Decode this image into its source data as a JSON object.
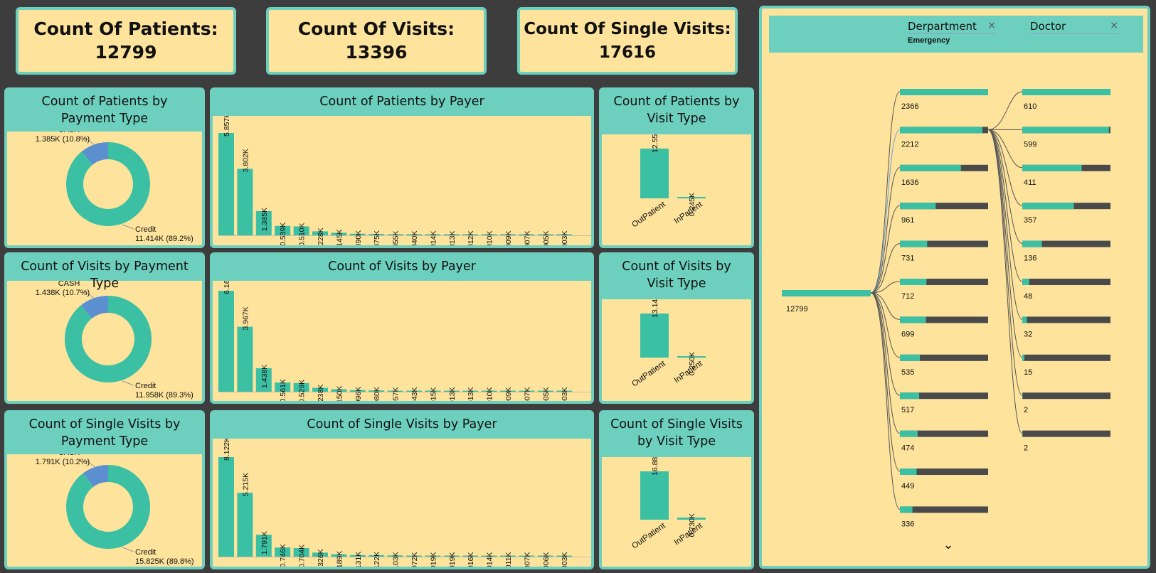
{
  "kpis": {
    "patients": {
      "title": "Count Of Patients:",
      "value": "12799"
    },
    "visits": {
      "title": "Count Of Visits:",
      "value": "13396"
    },
    "single": {
      "title": "Count Of Single Visits:",
      "value": "17616"
    }
  },
  "colors": {
    "teal": "#3cc0a4",
    "blue": "#5b8fcf",
    "panel": "#fde39c",
    "accent": "#6dd0bf",
    "dark": "#4a4a4a"
  },
  "chart_data": [
    {
      "type": "pie",
      "id": "donut1",
      "title": "Count of Patients by Payment Type",
      "slices": [
        {
          "label": "CASH",
          "value": 1385,
          "text": "1.385K (10.8%)"
        },
        {
          "label": "Credit",
          "value": 11414,
          "text": "11.414K (89.2%)"
        }
      ]
    },
    {
      "type": "bar",
      "id": "payer1",
      "title": "Count of Patients by Payer",
      "values": [
        5857,
        3802,
        1385,
        539,
        510,
        228,
        145,
        90,
        75,
        55,
        40,
        14,
        13,
        12,
        10,
        9,
        7,
        5,
        3
      ],
      "labels": [
        "5.857K",
        "3.802K",
        "1.385K",
        "0.539K",
        "0.510K",
        "0.228K",
        "0.145K",
        "0.090K",
        "0.075K",
        "0.055K",
        "0.040K",
        "0.014K",
        "0.013K",
        "0.012K",
        "0.010K",
        "0.009K",
        "0.007K",
        "0.005K",
        "0.003K"
      ]
    },
    {
      "type": "bar",
      "id": "vt1",
      "title": "Count of Patients by Visit Type",
      "categories": [
        "OutPatient",
        "InPatient"
      ],
      "values": [
        12554,
        245
      ],
      "labels": [
        "12.554K",
        "0.245K"
      ]
    },
    {
      "type": "pie",
      "id": "donut2",
      "title": "Count of Visits by Payment Type",
      "slices": [
        {
          "label": "CASH",
          "value": 1438,
          "text": "1.438K (10.7%)"
        },
        {
          "label": "Credit",
          "value": 11958,
          "text": "11.958K (89.3%)"
        }
      ]
    },
    {
      "type": "bar",
      "id": "payer2",
      "title": "Count of Visits by Payer",
      "values": [
        6162,
        3967,
        1438,
        561,
        529,
        238,
        150,
        96,
        80,
        57,
        43,
        15,
        13,
        13,
        10,
        9,
        7,
        5,
        3
      ],
      "labels": [
        "6.162K",
        "3.967K",
        "1.438K",
        "0.561K",
        "0.529K",
        "0.238K",
        "0.150K",
        "0.096K",
        "0.080K",
        "0.057K",
        "0.043K",
        "0.015K",
        "0.013K",
        "0.013K",
        "0.010K",
        "0.009K",
        "0.007K",
        "0.005K",
        "0.003K"
      ]
    },
    {
      "type": "bar",
      "id": "vt2",
      "title": "Count of Visits by Visit Type",
      "categories": [
        "OutPatient",
        "InPatient"
      ],
      "values": [
        13146,
        250
      ],
      "labels": [
        "13.146K",
        "0.250K"
      ]
    },
    {
      "type": "pie",
      "id": "donut3",
      "title": "Count of Single Visits by Payment Type",
      "slices": [
        {
          "label": "CASH",
          "value": 1791,
          "text": "1.791K (10.2%)"
        },
        {
          "label": "Credit",
          "value": 15825,
          "text": "15.825K (89.8%)"
        }
      ]
    },
    {
      "type": "bar",
      "id": "payer3",
      "title": "Count of Single Visits by Payer",
      "values": [
        8122,
        5215,
        1791,
        746,
        704,
        326,
        189,
        131,
        122,
        103,
        72,
        19,
        19,
        16,
        14,
        11,
        7,
        6,
        3
      ],
      "labels": [
        "8.122K",
        "5.215K",
        "1.791K",
        "0.746K",
        "0.704K",
        "0.326K",
        "0.189K",
        "0.131K",
        "0.122K",
        "0.103K",
        "0.072K",
        "0.019K",
        "0.019K",
        "0.016K",
        "0.014K",
        "0.011K",
        "0.007K",
        "0.006K",
        "0.003K"
      ]
    },
    {
      "type": "bar",
      "id": "vt3",
      "title": "Count of Single Visits by Visit Type",
      "categories": [
        "OutPatient",
        "InPatient"
      ],
      "values": [
        16886,
        730
      ],
      "labels": [
        "16.886K",
        "0.730K"
      ]
    }
  ],
  "decomposition": {
    "levels": [
      {
        "name": "Derpartment",
        "selected": "Emergency"
      },
      {
        "name": "Doctor",
        "selected": ""
      }
    ],
    "close_glyph": "×",
    "root": {
      "value": 12799,
      "label": "12799"
    },
    "level1": [
      2366,
      2212,
      1636,
      961,
      731,
      712,
      699,
      535,
      517,
      474,
      449,
      336
    ],
    "level2": [
      610,
      599,
      411,
      357,
      136,
      48,
      32,
      15,
      2,
      2
    ],
    "expanded_index": 1,
    "more_glyph": "⌄"
  }
}
